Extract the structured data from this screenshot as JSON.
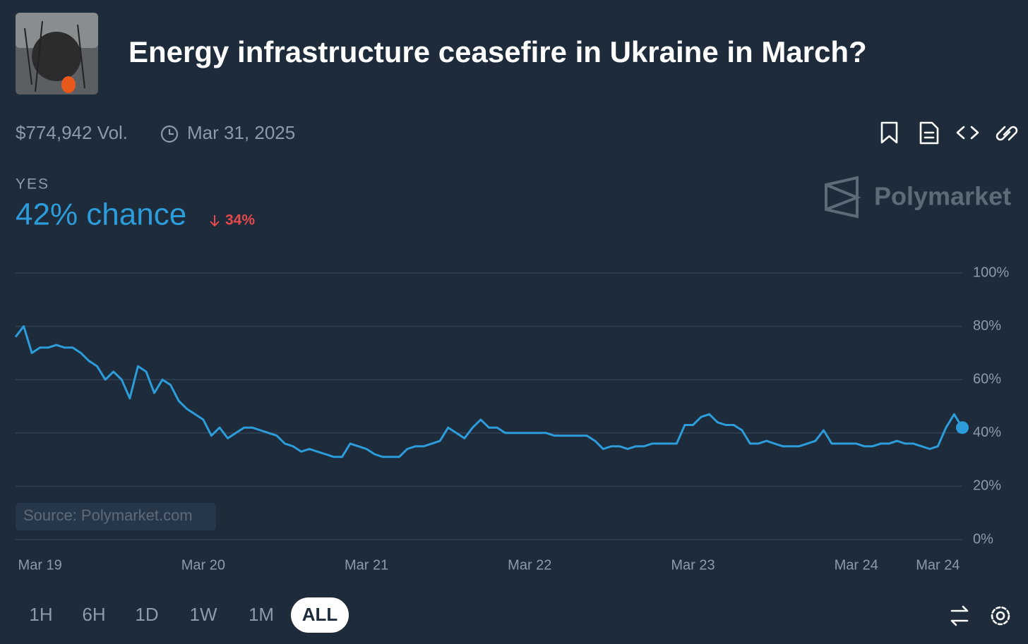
{
  "header": {
    "title": "Energy infrastructure ceasefire in Ukraine in March?",
    "volume": "$774,942 Vol.",
    "end_date": "Mar 31, 2025",
    "outcome": "YES",
    "chance": "42% chance",
    "change": "34%",
    "brand": "Polymarket"
  },
  "source": "Source: Polymarket.com",
  "ranges": [
    "1H",
    "6H",
    "1D",
    "1W",
    "1M",
    "ALL"
  ],
  "chart_data": {
    "type": "line",
    "color": "#2d9cdb",
    "grid": true,
    "categories": [
      null,
      null,
      null,
      "Mar 19",
      null,
      null,
      null,
      null,
      null,
      null,
      null,
      null,
      null,
      null,
      null,
      null,
      null,
      null,
      null,
      null,
      null,
      null,
      null,
      "Mar 20",
      null,
      null,
      null,
      null,
      null,
      null,
      null,
      null,
      null,
      null,
      null,
      null,
      null,
      null,
      null,
      null,
      null,
      null,
      null,
      "Mar 21",
      null,
      null,
      null,
      null,
      null,
      null,
      null,
      null,
      null,
      null,
      null,
      null,
      null,
      null,
      null,
      null,
      null,
      null,
      null,
      "Mar 22",
      null,
      null,
      null,
      null,
      null,
      null,
      null,
      null,
      null,
      null,
      null,
      null,
      null,
      null,
      null,
      null,
      null,
      null,
      null,
      "Mar 23",
      null,
      null,
      null,
      null,
      null,
      null,
      null,
      null,
      null,
      null,
      null,
      null,
      null,
      null,
      null,
      null,
      null,
      null,
      null,
      "Mar 24",
      null,
      null,
      null,
      null,
      null,
      null,
      null,
      null,
      null,
      "Mar 24",
      null,
      null,
      null
    ],
    "values": [
      76,
      80,
      70,
      72,
      72,
      73,
      72,
      72,
      70,
      67,
      65,
      60,
      63,
      60,
      53,
      65,
      63,
      55,
      60,
      58,
      52,
      49,
      47,
      45,
      39,
      42,
      38,
      40,
      42,
      42,
      41,
      40,
      39,
      36,
      35,
      33,
      34,
      33,
      32,
      31,
      31,
      36,
      35,
      34,
      32,
      31,
      31,
      31,
      34,
      35,
      35,
      36,
      37,
      42,
      40,
      38,
      42,
      45,
      42,
      42,
      40,
      40,
      40,
      40,
      40,
      40,
      39,
      39,
      39,
      39,
      39,
      37,
      34,
      35,
      35,
      34,
      35,
      35,
      36,
      36,
      36,
      36,
      43,
      43,
      46,
      47,
      44,
      43,
      43,
      41,
      36,
      36,
      37,
      36,
      35,
      35,
      35,
      36,
      37,
      41,
      36,
      36,
      36,
      36,
      35,
      35,
      36,
      36,
      37,
      36,
      36,
      35,
      34,
      35,
      42,
      47,
      42
    ],
    "ylim": [
      0,
      100
    ],
    "yticks": [
      {
        "value": 0,
        "label": "0%"
      },
      {
        "value": 20,
        "label": "20%"
      },
      {
        "value": 40,
        "label": "40%"
      },
      {
        "value": 60,
        "label": "60%"
      },
      {
        "value": 80,
        "label": "80%"
      },
      {
        "value": 100,
        "label": "100%"
      }
    ]
  }
}
